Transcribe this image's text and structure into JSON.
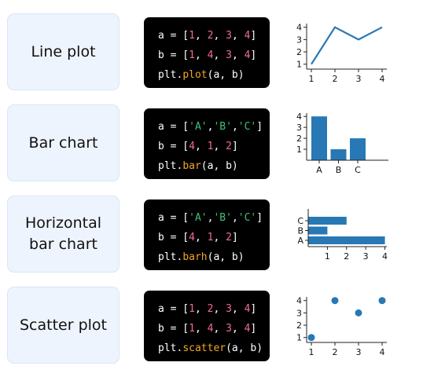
{
  "rows": [
    {
      "label": "Line plot",
      "code": [
        "a = [1, 2, 3, 4]",
        "b = [1, 4, 3, 4]",
        "plt.plot(a, b)"
      ]
    },
    {
      "label": "Bar chart",
      "code": [
        "a = ['A','B','C']",
        "b = [4, 1, 2]",
        "plt.bar(a, b)"
      ]
    },
    {
      "label": "Horizontal bar chart",
      "code": [
        "a = ['A','B','C']",
        "b = [4, 1, 2]",
        "plt.barh(a, b)"
      ]
    },
    {
      "label": "Scatter plot",
      "code": [
        "a = [1, 2, 3, 4]",
        "b = [1, 4, 3, 4]",
        "plt.scatter(a, b)"
      ]
    }
  ],
  "colors": {
    "plot": "#2878b5",
    "number": "#f26c8c",
    "string": "#3ec37a",
    "function": "#f5a623"
  },
  "chart_data": [
    {
      "type": "line",
      "x": [
        1,
        2,
        3,
        4
      ],
      "y": [
        1,
        4,
        3,
        4
      ],
      "xticks": [
        "1",
        "2",
        "3",
        "4"
      ],
      "yticks": [
        "1",
        "2",
        "3",
        "4"
      ]
    },
    {
      "type": "bar",
      "categories": [
        "A",
        "B",
        "C"
      ],
      "values": [
        4,
        1,
        2
      ],
      "yticks": [
        "1",
        "2",
        "3",
        "4"
      ]
    },
    {
      "type": "bar",
      "orientation": "horizontal",
      "categories": [
        "A",
        "B",
        "C"
      ],
      "values": [
        4,
        1,
        2
      ],
      "xticks": [
        "1",
        "2",
        "3",
        "4"
      ]
    },
    {
      "type": "scatter",
      "x": [
        1,
        2,
        3,
        4
      ],
      "y": [
        1,
        4,
        3,
        4
      ],
      "xticks": [
        "1",
        "2",
        "3",
        "4"
      ],
      "yticks": [
        "1",
        "2",
        "3",
        "4"
      ]
    }
  ]
}
